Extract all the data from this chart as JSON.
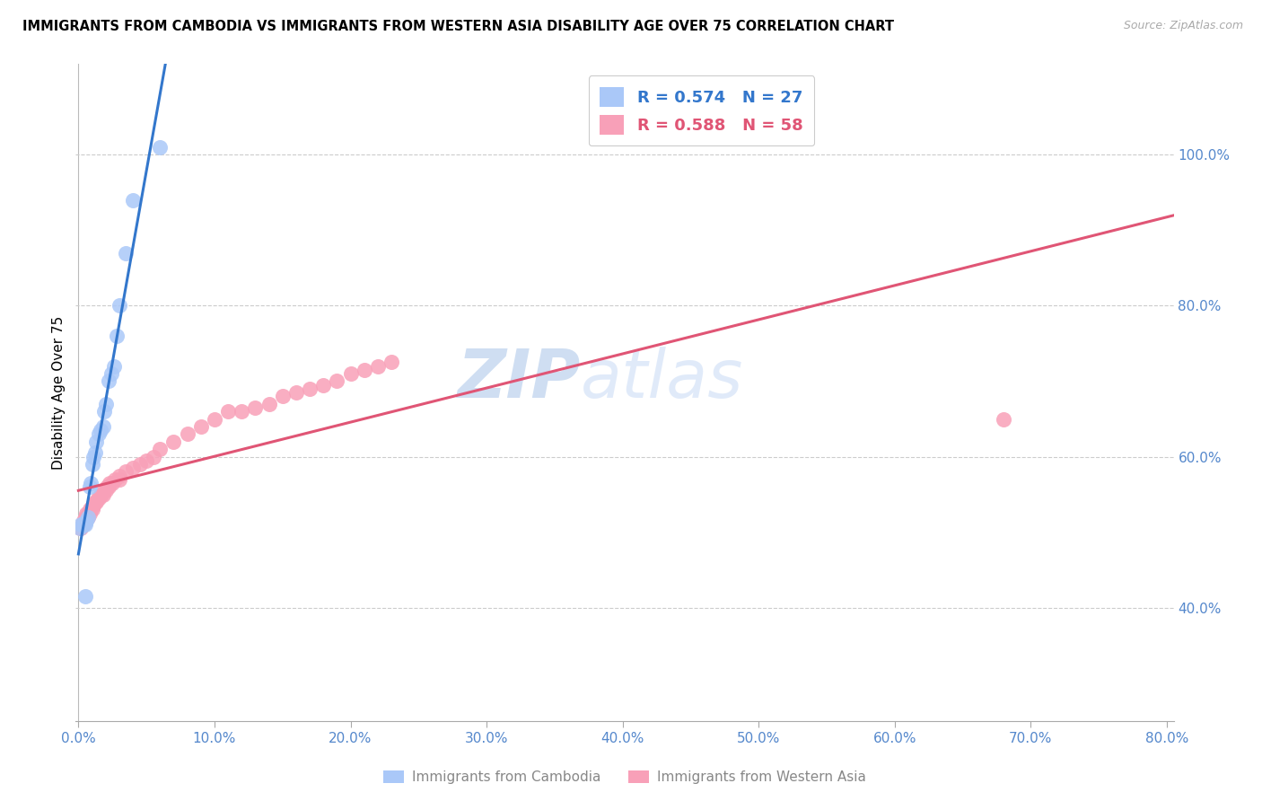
{
  "title": "IMMIGRANTS FROM CAMBODIA VS IMMIGRANTS FROM WESTERN ASIA DISABILITY AGE OVER 75 CORRELATION CHART",
  "source": "Source: ZipAtlas.com",
  "ylabel": "Disability Age Over 75",
  "legend_cambodia": "Immigrants from Cambodia",
  "legend_western": "Immigrants from Western Asia",
  "R_cambodia": 0.574,
  "N_cambodia": 27,
  "R_western": 0.588,
  "N_western": 58,
  "color_cambodia": "#aac8f8",
  "color_cambodia_line": "#3377cc",
  "color_western": "#f8a0b8",
  "color_western_line": "#e05575",
  "color_axis_labels": "#5588cc",
  "xmin": -0.002,
  "xmax": 0.805,
  "ymin": 0.25,
  "ymax": 1.12,
  "y_ticks_right": [
    0.4,
    0.6,
    0.8,
    1.0
  ],
  "x_ticks": [
    0.0,
    0.1,
    0.2,
    0.3,
    0.4,
    0.5,
    0.6,
    0.7,
    0.8
  ],
  "cambodia_x": [
    0.001,
    0.002,
    0.003,
    0.004,
    0.005,
    0.006,
    0.007,
    0.008,
    0.009,
    0.01,
    0.011,
    0.012,
    0.013,
    0.015,
    0.016,
    0.018,
    0.019,
    0.02,
    0.022,
    0.024,
    0.026,
    0.028,
    0.03,
    0.035,
    0.04,
    0.06,
    0.005
  ],
  "cambodia_y": [
    0.505,
    0.51,
    0.51,
    0.51,
    0.51,
    0.515,
    0.52,
    0.56,
    0.565,
    0.59,
    0.6,
    0.605,
    0.62,
    0.63,
    0.635,
    0.64,
    0.66,
    0.67,
    0.7,
    0.71,
    0.72,
    0.76,
    0.8,
    0.87,
    0.94,
    1.01,
    0.415
  ],
  "western_x": [
    0.001,
    0.002,
    0.003,
    0.003,
    0.004,
    0.004,
    0.005,
    0.005,
    0.006,
    0.006,
    0.007,
    0.007,
    0.008,
    0.008,
    0.009,
    0.01,
    0.01,
    0.011,
    0.012,
    0.013,
    0.014,
    0.015,
    0.016,
    0.017,
    0.018,
    0.019,
    0.02,
    0.021,
    0.022,
    0.023,
    0.025,
    0.027,
    0.03,
    0.03,
    0.035,
    0.04,
    0.045,
    0.05,
    0.055,
    0.06,
    0.07,
    0.08,
    0.09,
    0.1,
    0.11,
    0.12,
    0.13,
    0.14,
    0.15,
    0.16,
    0.17,
    0.18,
    0.19,
    0.2,
    0.21,
    0.22,
    0.23,
    0.68
  ],
  "western_y": [
    0.505,
    0.505,
    0.51,
    0.51,
    0.51,
    0.515,
    0.515,
    0.52,
    0.52,
    0.525,
    0.52,
    0.525,
    0.525,
    0.53,
    0.53,
    0.53,
    0.535,
    0.535,
    0.54,
    0.54,
    0.545,
    0.545,
    0.55,
    0.55,
    0.55,
    0.555,
    0.555,
    0.56,
    0.56,
    0.565,
    0.565,
    0.57,
    0.57,
    0.575,
    0.58,
    0.585,
    0.59,
    0.595,
    0.6,
    0.61,
    0.62,
    0.63,
    0.64,
    0.65,
    0.66,
    0.66,
    0.665,
    0.67,
    0.68,
    0.685,
    0.69,
    0.695,
    0.7,
    0.71,
    0.715,
    0.72,
    0.725,
    0.65
  ],
  "watermark_zip": "ZIP",
  "watermark_atlas": "atlas"
}
